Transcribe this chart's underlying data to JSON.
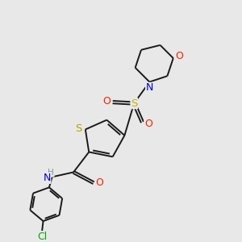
{
  "background_color": "#e8e8e8",
  "bond_color": "#1a1a1a",
  "atom_colors": {
    "S_thio": "#b8a000",
    "S_sulfonyl": "#c8b400",
    "O": "#ff2000",
    "N": "#0000ee",
    "Cl": "#00aa00",
    "H": "#7a9a9a"
  },
  "figsize": [
    3.0,
    3.0
  ],
  "dpi": 100
}
